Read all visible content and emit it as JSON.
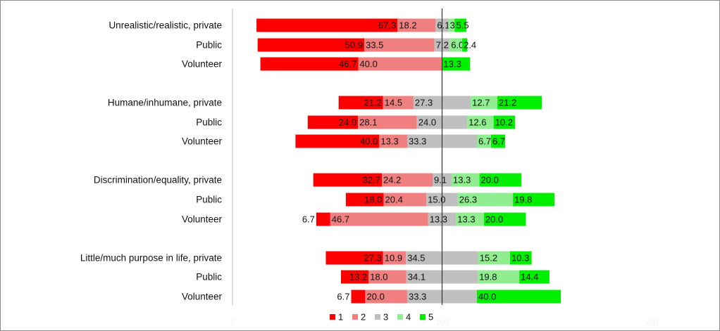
{
  "chart_data": {
    "type": "bar",
    "stacked": "diverging",
    "categories": [
      "Unrealistic/realistic, private",
      "Public",
      "Volunteer",
      "Humane/inhumane, private",
      "Public",
      "Volunteer",
      "Discrimination/equality, private",
      "Public",
      "Volunteer",
      "Little/much purpose in life, private",
      "Public",
      "Volunteer"
    ],
    "series": [
      {
        "name": "1",
        "color": "#ff0000",
        "values": [
          67.3,
          50.9,
          46.7,
          21.2,
          24.0,
          40.0,
          32.7,
          18.0,
          6.7,
          27.3,
          13.2,
          6.7
        ]
      },
      {
        "name": "2",
        "color": "#f08080",
        "values": [
          18.2,
          33.5,
          40.0,
          14.5,
          28.1,
          13.3,
          24.2,
          20.4,
          46.7,
          10.9,
          18.0,
          20.0
        ]
      },
      {
        "name": "3",
        "color": "#bfbfbf",
        "values": [
          6.1,
          7.2,
          0.0,
          27.3,
          24.0,
          33.3,
          9.1,
          15.0,
          13.3,
          34.5,
          34.1,
          33.3
        ]
      },
      {
        "name": "4",
        "color": "#90ee90",
        "values": [
          3.0,
          6.0,
          0.0,
          12.7,
          12.6,
          6.7,
          13.3,
          26.3,
          13.3,
          15.2,
          19.8,
          0.0
        ]
      },
      {
        "name": "5",
        "color": "#00ee00",
        "values": [
          5.5,
          2.4,
          13.3,
          21.2,
          10.2,
          6.7,
          20.0,
          19.8,
          20.0,
          10.3,
          14.4,
          40.0
        ]
      }
    ],
    "value_labels": [
      [
        "67.3",
        "18.2",
        "6.1",
        "3.0",
        "5.5"
      ],
      [
        "50.9",
        "33.5",
        "7.2",
        "6.0",
        "2.4"
      ],
      [
        "46.7",
        "40.0",
        "0.0",
        "0.0",
        "13.3"
      ],
      [
        "21.2",
        "14.5",
        "27.3",
        "12.7",
        "21.2"
      ],
      [
        "24.0",
        "28.1",
        "24.0",
        "12.6",
        "10.2"
      ],
      [
        "40.0",
        "13.3",
        "33.3",
        "6.7",
        "6.7"
      ],
      [
        "32.7",
        "24.2",
        "9.1",
        "13.3",
        "20.0"
      ],
      [
        "18.0",
        "20.4",
        "15.0",
        "26.3",
        "19.8"
      ],
      [
        "6.7",
        "46.7",
        "13.3",
        "13.3",
        "20.0"
      ],
      [
        "27.3",
        "10.9",
        "34.5",
        "15.2",
        "10.3"
      ],
      [
        "13.2",
        "18.0",
        "34.1",
        "19.8",
        "14.4"
      ],
      [
        "6.7",
        "20.0",
        "33.3",
        "0.0",
        "40.0"
      ]
    ],
    "xlim": [
      0,
      200
    ],
    "x_ticks": [
      "0",
      "100",
      "200"
    ],
    "legend_position": "bottom",
    "center_line": true,
    "grid": false
  }
}
